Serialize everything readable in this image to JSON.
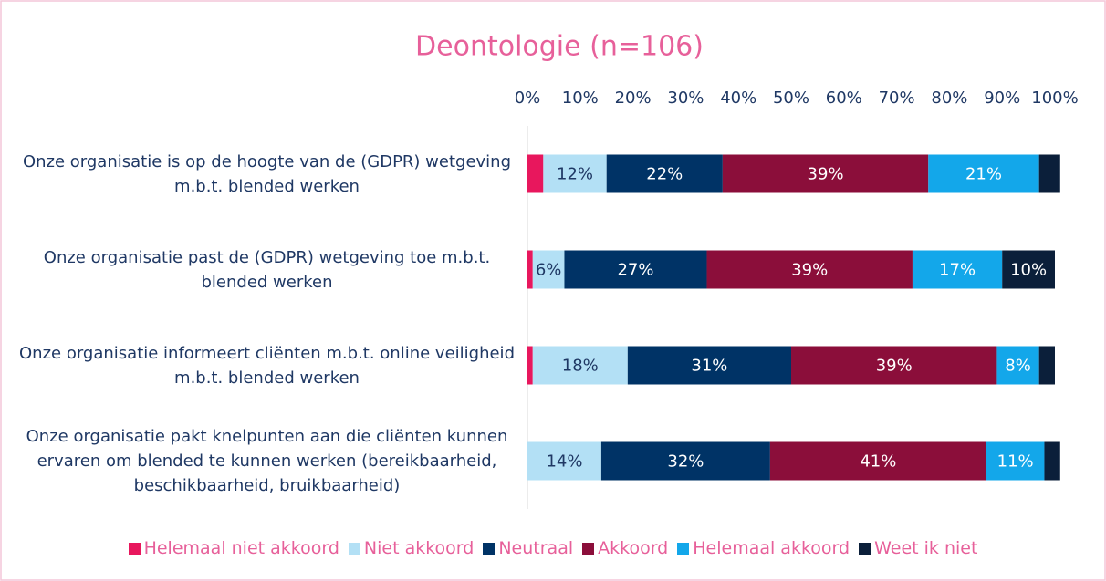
{
  "chart_data": {
    "type": "stacked-barh",
    "title": "Deontologie (n=106)",
    "categories": [
      "Onze organisatie is op de hoogte van de (GDPR) wetgeving m.b.t. blended werken",
      "Onze organisatie past de (GDPR) wetgeving toe m.b.t. blended werken",
      "Onze organisatie informeert cliënten m.b.t. online veiligheid m.b.t. blended werken",
      "Onze organisatie pakt knelpunten aan die cliënten kunnen ervaren om blended te kunnen werken (bereikbaarheid, beschikbaarheid, bruikbaarheid)"
    ],
    "series": [
      {
        "name": "Helemaal niet akkoord",
        "color": "#e8175d",
        "values": [
          3,
          1,
          1,
          0
        ],
        "value_labels": [
          null,
          null,
          null,
          null
        ]
      },
      {
        "name": "Niet akkoord",
        "color": "#b3e0f5",
        "values": [
          12,
          6,
          18,
          14
        ],
        "value_labels": [
          "12%",
          "6%",
          "18%",
          "14%"
        ]
      },
      {
        "name": "Neutraal",
        "color": "#003366",
        "values": [
          22,
          27,
          31,
          32
        ],
        "value_labels": [
          "22%",
          "27%",
          "31%",
          "32%"
        ]
      },
      {
        "name": "Akkoord",
        "color": "#8b0e3a",
        "values": [
          39,
          39,
          39,
          41
        ],
        "value_labels": [
          "39%",
          "39%",
          "39%",
          "41%"
        ]
      },
      {
        "name": "Helemaal akkoord",
        "color": "#13a7ea",
        "values": [
          21,
          17,
          8,
          11
        ],
        "value_labels": [
          "21%",
          "17%",
          "8%",
          "11%"
        ]
      },
      {
        "name": "Weet ik niet",
        "color": "#0b1f3a",
        "values": [
          4,
          10,
          3,
          3
        ],
        "value_labels": [
          null,
          "10%",
          null,
          null
        ]
      }
    ],
    "xlim": [
      0,
      100
    ],
    "xticks": [
      {
        "value": 0,
        "label": "0%"
      },
      {
        "value": 10,
        "label": "10%"
      },
      {
        "value": 20,
        "label": "20%"
      },
      {
        "value": 30,
        "label": "30%"
      },
      {
        "value": 40,
        "label": "40%"
      },
      {
        "value": 50,
        "label": "50%"
      },
      {
        "value": 60,
        "label": "60%"
      },
      {
        "value": 70,
        "label": "70%"
      },
      {
        "value": 80,
        "label": "80%"
      },
      {
        "value": 90,
        "label": "90%"
      },
      {
        "value": 100,
        "label": "100%"
      }
    ],
    "grid": false,
    "legend": "bottom"
  }
}
